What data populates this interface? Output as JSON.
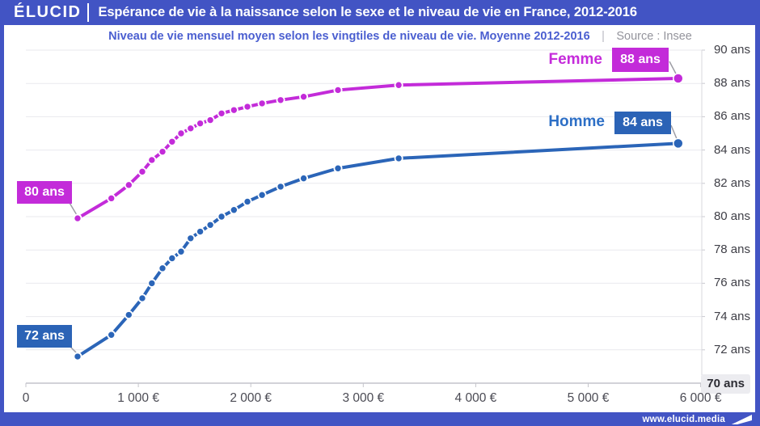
{
  "header": {
    "logo": "ÉLUCID",
    "title": "Espérance de vie à la naissance selon le sexe et le niveau de vie en France, 2012-2016"
  },
  "subtitle": {
    "text": "Niveau de vie mensuel moyen selon les vingtiles de niveau de vie. Moyenne 2012-2016",
    "separator": "|",
    "source": "Source : Insee"
  },
  "footer": {
    "url": "www.elucid.media",
    "flag_icon": "elucid-flag-icon"
  },
  "colors": {
    "frame_blue": "#4254c4",
    "femme_magenta": "#c32bd9",
    "homme_blue": "#2b65b8",
    "subtitle_blue": "#4a5ed0",
    "grid_gray": "#e9e9ee",
    "axis_gray": "#c4c4cb"
  },
  "chart_data": {
    "type": "line",
    "title": "Espérance de vie à la naissance selon le sexe et le niveau de vie en France, 2012-2016",
    "xlabel": "Niveau de vie mensuel moyen selon les vingtiles de niveau de vie (€)",
    "ylabel": "Espérance de vie (ans)",
    "xlim": [
      0,
      6010
    ],
    "ylim": [
      70,
      90
    ],
    "grid": "horizontal",
    "legend_position": "inline-right",
    "x": [
      460,
      760,
      915,
      1035,
      1120,
      1215,
      1300,
      1380,
      1465,
      1550,
      1640,
      1740,
      1850,
      1970,
      2100,
      2265,
      2470,
      2775,
      3315,
      5800
    ],
    "series": [
      {
        "name": "Femme",
        "color": "#c32bd9",
        "start_label": "80 ans",
        "end_label": "88 ans",
        "values": [
          79.9,
          81.1,
          81.9,
          82.7,
          83.4,
          83.9,
          84.5,
          85.0,
          85.3,
          85.6,
          85.8,
          86.2,
          86.4,
          86.6,
          86.8,
          87.0,
          87.2,
          87.6,
          87.9,
          88.3
        ]
      },
      {
        "name": "Homme",
        "color": "#2b65b8",
        "start_label": "72 ans",
        "end_label": "84 ans",
        "values": [
          71.6,
          72.9,
          74.1,
          75.1,
          76.0,
          76.9,
          77.5,
          77.9,
          78.7,
          79.1,
          79.5,
          80.0,
          80.4,
          80.9,
          81.3,
          81.8,
          82.3,
          82.9,
          83.5,
          84.4
        ]
      }
    ],
    "x_ticks": [
      {
        "value": 0,
        "label": "0"
      },
      {
        "value": 1000,
        "label": "1 000 €"
      },
      {
        "value": 2000,
        "label": "2 000 €"
      },
      {
        "value": 3000,
        "label": "3 000 €"
      },
      {
        "value": 4000,
        "label": "4 000 €"
      },
      {
        "value": 5000,
        "label": "5 000 €"
      },
      {
        "value": 6000,
        "label": "6 000 €"
      }
    ],
    "y_ticks": [
      {
        "value": 90,
        "label": "90 ans"
      },
      {
        "value": 88,
        "label": "88 ans"
      },
      {
        "value": 86,
        "label": "86 ans"
      },
      {
        "value": 84,
        "label": "84 ans"
      },
      {
        "value": 82,
        "label": "82 ans"
      },
      {
        "value": 80,
        "label": "80 ans"
      },
      {
        "value": 78,
        "label": "78 ans"
      },
      {
        "value": 76,
        "label": "76 ans"
      },
      {
        "value": 74,
        "label": "74 ans"
      },
      {
        "value": 72,
        "label": "72 ans"
      },
      {
        "value": 70,
        "label": "70 ans",
        "highlight": true
      }
    ]
  }
}
